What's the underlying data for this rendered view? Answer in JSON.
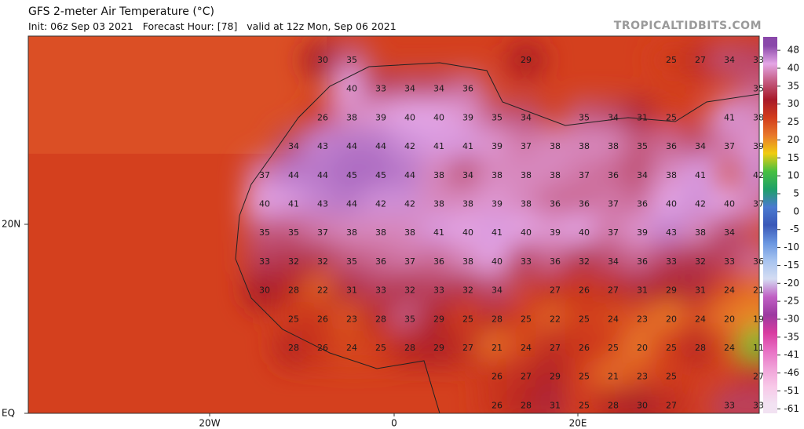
{
  "header": {
    "title": "GFS 2-meter Air Temperature (°C)",
    "subtitle": "Init: 06z Sep 03 2021   Forecast Hour: [78]   valid at 12z Mon, Sep 06 2021",
    "site": "TROPICALTIDBITS.COM"
  },
  "axes": {
    "x_labels": [
      "20W",
      "0",
      "20E"
    ],
    "y_labels": [
      "20N",
      "EQ"
    ]
  },
  "colorbar": {
    "ticks": [
      48,
      40,
      35,
      30,
      25,
      20,
      15,
      10,
      5,
      0,
      -5,
      -10,
      -15,
      -20,
      -25,
      -30,
      -35,
      -41,
      -46,
      -51,
      -61
    ],
    "colors": [
      "#8a48aa",
      "#e4a6e6",
      "#c45a80",
      "#a81a2a",
      "#d23c1c",
      "#e8782a",
      "#f0cc10",
      "#48c040",
      "#1ea068",
      "#4a7ad0",
      "#3a58b8",
      "#6a96e0",
      "#a8c4f0",
      "#d4dcf2",
      "#c060c4",
      "#9c3aa0",
      "#d83ca0",
      "#e870c4",
      "#f0a2d8",
      "#f8c8e8",
      "#f2e2f2"
    ]
  },
  "map": {
    "rows": [
      [
        null,
        null,
        30,
        35,
        null,
        null,
        null,
        null,
        null,
        29,
        null,
        null,
        null,
        null,
        25,
        27,
        34,
        33
      ],
      [
        null,
        null,
        null,
        40,
        33,
        34,
        34,
        36,
        null,
        null,
        null,
        null,
        null,
        null,
        null,
        null,
        null,
        35
      ],
      [
        null,
        null,
        26,
        38,
        39,
        40,
        40,
        39,
        35,
        34,
        null,
        35,
        34,
        31,
        25,
        null,
        41,
        38
      ],
      [
        null,
        34,
        43,
        44,
        44,
        42,
        41,
        41,
        39,
        37,
        38,
        38,
        38,
        35,
        36,
        34,
        37,
        39
      ],
      [
        37,
        44,
        44,
        45,
        45,
        44,
        38,
        34,
        38,
        38,
        38,
        37,
        36,
        34,
        38,
        41,
        null,
        42
      ],
      [
        40,
        41,
        43,
        44,
        42,
        42,
        38,
        38,
        39,
        38,
        36,
        36,
        37,
        36,
        40,
        42,
        40,
        37
      ],
      [
        35,
        35,
        37,
        38,
        38,
        38,
        41,
        40,
        41,
        40,
        39,
        40,
        37,
        39,
        43,
        38,
        34,
        null
      ],
      [
        33,
        32,
        32,
        35,
        36,
        37,
        36,
        38,
        40,
        33,
        36,
        32,
        34,
        36,
        33,
        32,
        33,
        36
      ],
      [
        30,
        28,
        22,
        31,
        33,
        32,
        33,
        32,
        34,
        null,
        27,
        26,
        27,
        31,
        29,
        31,
        24,
        21
      ],
      [
        null,
        25,
        26,
        23,
        28,
        35,
        29,
        25,
        28,
        25,
        22,
        25,
        24,
        23,
        20,
        24,
        20,
        19
      ],
      [
        null,
        28,
        26,
        24,
        25,
        28,
        29,
        27,
        21,
        24,
        27,
        26,
        25,
        20,
        25,
        28,
        24,
        11
      ],
      [
        null,
        null,
        null,
        null,
        null,
        null,
        null,
        null,
        26,
        27,
        29,
        25,
        21,
        23,
        25,
        null,
        null,
        27
      ],
      [
        null,
        null,
        null,
        null,
        null,
        null,
        null,
        null,
        26,
        28,
        31,
        25,
        28,
        30,
        27,
        null,
        33,
        33
      ]
    ]
  }
}
